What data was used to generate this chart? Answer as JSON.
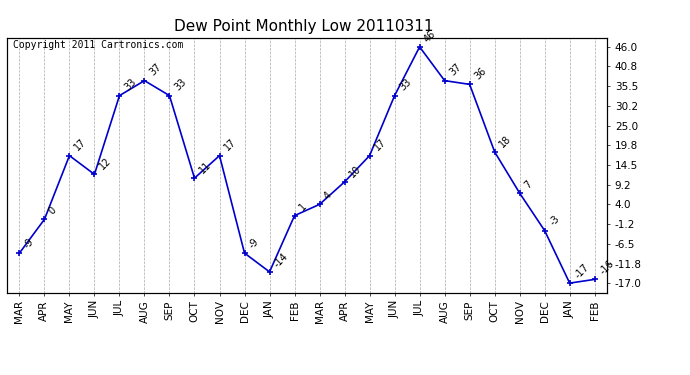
{
  "title": "Dew Point Monthly Low 20110311",
  "copyright": "Copyright 2011 Cartronics.com",
  "x_labels": [
    "MAR",
    "APR",
    "MAY",
    "JUN",
    "JUL",
    "AUG",
    "SEP",
    "OCT",
    "NOV",
    "DEC",
    "JAN",
    "FEB",
    "MAR",
    "APR",
    "MAY",
    "JUN",
    "JUL",
    "AUG",
    "SEP",
    "OCT",
    "NOV",
    "DEC",
    "JAN",
    "FEB"
  ],
  "y_values": [
    -9,
    0,
    17,
    12,
    33,
    37,
    33,
    11,
    17,
    -9,
    -14,
    1,
    4,
    10,
    17,
    33,
    46,
    37,
    36,
    18,
    7,
    -3,
    -17,
    -16
  ],
  "y_right_ticks": [
    46.0,
    40.8,
    35.5,
    30.2,
    25.0,
    19.8,
    14.5,
    9.2,
    4.0,
    -1.2,
    -6.5,
    -11.8,
    -17.0
  ],
  "ylim": [
    -19.5,
    48.5
  ],
  "line_color": "#0000cc",
  "marker": "+",
  "marker_color": "#0000cc",
  "bg_color": "#ffffff",
  "grid_color": "#aaaaaa",
  "title_fontsize": 11,
  "label_fontsize": 7,
  "tick_fontsize": 7.5,
  "copyright_fontsize": 7
}
